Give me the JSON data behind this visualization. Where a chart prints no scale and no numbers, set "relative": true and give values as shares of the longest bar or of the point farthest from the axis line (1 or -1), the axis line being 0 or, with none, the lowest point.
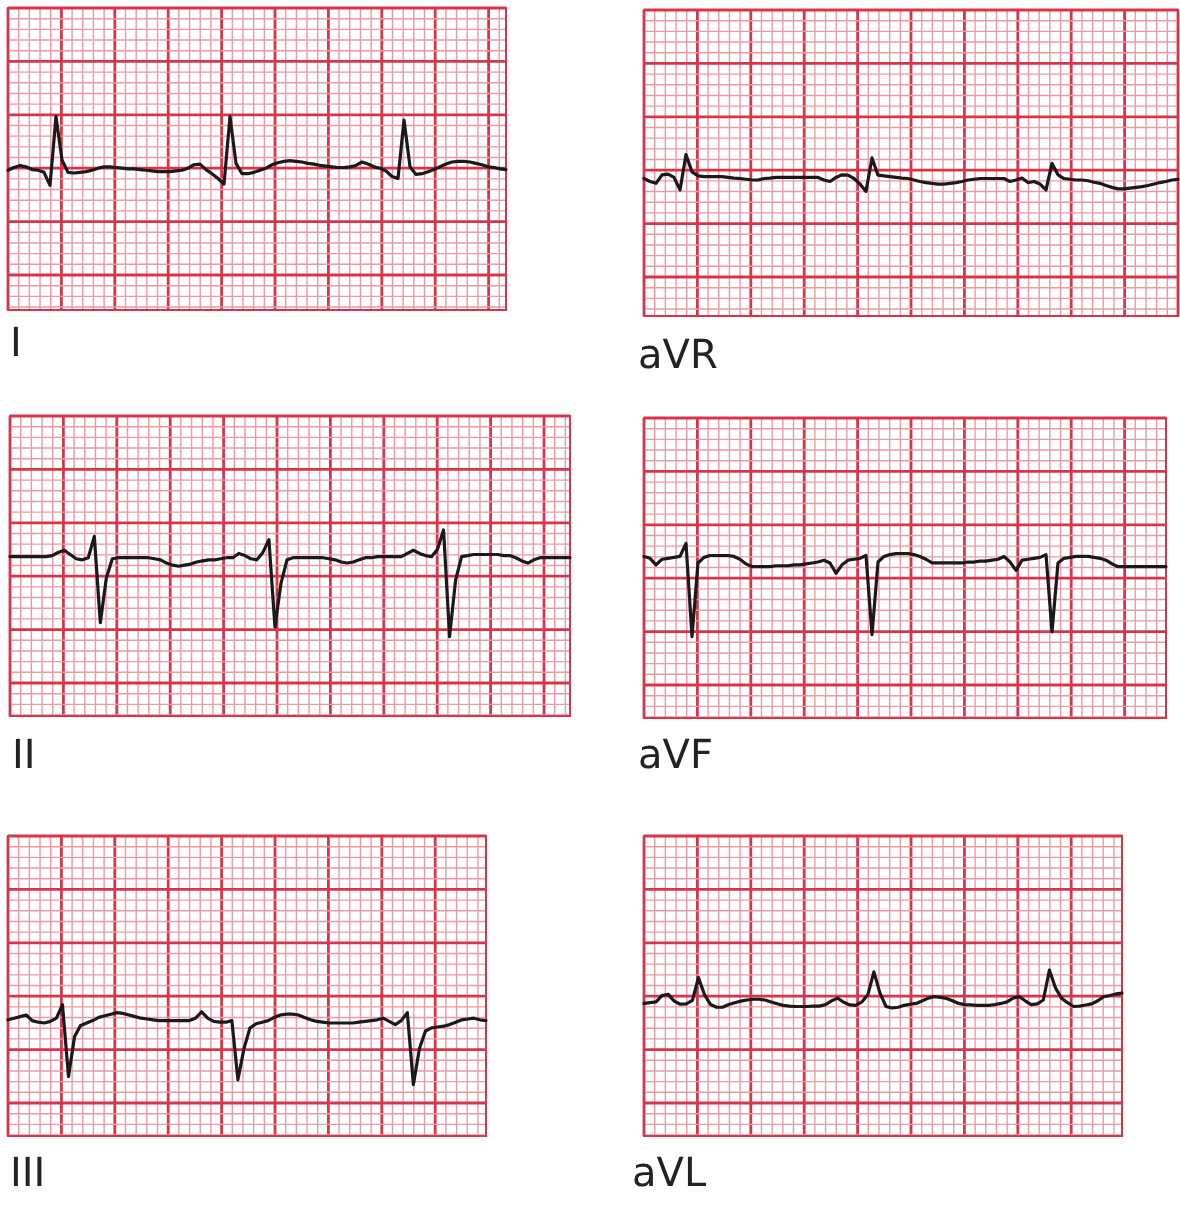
{
  "chart_data": [
    {
      "type": "line",
      "title": "I",
      "relative": true,
      "grid": true,
      "color": "#1a1a1a",
      "categories": [
        null,
        null,
        null,
        null,
        null,
        null,
        null,
        null,
        null,
        null,
        null,
        null,
        null,
        null,
        null,
        null,
        null,
        null,
        null,
        null,
        null,
        null,
        null,
        null,
        null,
        null,
        null,
        null,
        null,
        null,
        null,
        null,
        null,
        null,
        null,
        null,
        null,
        null,
        null,
        null,
        null,
        null,
        null,
        null,
        null,
        null,
        null,
        null,
        null,
        null,
        null,
        null,
        null,
        null,
        null,
        null,
        null,
        null,
        null,
        null,
        null,
        null,
        null,
        null,
        null,
        null,
        null,
        null,
        null,
        null,
        null,
        null,
        null,
        null,
        null,
        null,
        null,
        null,
        null,
        null,
        null,
        null,
        null,
        null
      ],
      "values": [
        0.22,
        0.26,
        0.29,
        0.27,
        0.23,
        0.22,
        0.19,
        0,
        1,
        0.37,
        0.19,
        0.18,
        0.19,
        0.2,
        0.22,
        0.25,
        0.27,
        0.27,
        0.26,
        0.25,
        0.24,
        0.24,
        0.23,
        0.22,
        0.21,
        0.2,
        0.2,
        0.2,
        0.21,
        0.22,
        0.25,
        0.3,
        0.31,
        0.23,
        0.17,
        0.1,
        0.02,
        1,
        0.32,
        0.17,
        0.17,
        0.19,
        0.22,
        0.25,
        0.3,
        0.33,
        0.35,
        0.36,
        0.35,
        0.34,
        0.32,
        0.31,
        0.29,
        0.28,
        0.27,
        0.26,
        0.26,
        0.27,
        0.29,
        0.34,
        0.31,
        0.27,
        0.25,
        0.21,
        0.13,
        0.1,
        0.95,
        0.27,
        0.16,
        0.17,
        0.2,
        0.23,
        0.27,
        0.31,
        0.34,
        0.35,
        0.35,
        0.34,
        0.32,
        0.3,
        0.27,
        0.26,
        0.24,
        0.23
      ]
    },
    {
      "type": "line",
      "title": "aVR",
      "relative": true,
      "grid": true,
      "color": "#1a1a1a",
      "categories": [
        null,
        null,
        null,
        null,
        null,
        null,
        null,
        null,
        null,
        null,
        null,
        null,
        null,
        null,
        null,
        null,
        null,
        null,
        null,
        null,
        null,
        null,
        null,
        null,
        null,
        null,
        null,
        null,
        null,
        null,
        null,
        null,
        null,
        null,
        null,
        null,
        null,
        null,
        null,
        null,
        null,
        null,
        null,
        null,
        null,
        null,
        null,
        null,
        null,
        null,
        null,
        null,
        null,
        null,
        null,
        null,
        null,
        null,
        null,
        null,
        null,
        null,
        null,
        null,
        null,
        null,
        null,
        null,
        null,
        null,
        null,
        null,
        null,
        null,
        null,
        null,
        null,
        null,
        null,
        null,
        null,
        null,
        null,
        null,
        null,
        null,
        null,
        null,
        null,
        null
      ],
      "values": [
        0.35,
        0.27,
        0.22,
        0.45,
        0.47,
        0.38,
        0.04,
        1,
        0.53,
        0.42,
        0.4,
        0.4,
        0.4,
        0.4,
        0.38,
        0.36,
        0.35,
        0.33,
        0.31,
        0.31,
        0.35,
        0.36,
        0.38,
        0.38,
        0.38,
        0.38,
        0.38,
        0.38,
        0.38,
        0.38,
        0.31,
        0.27,
        0.38,
        0.45,
        0.44,
        0.35,
        0.2,
        0,
        0.91,
        0.44,
        0.42,
        0.4,
        0.38,
        0.36,
        0.35,
        0.31,
        0.27,
        0.24,
        0.22,
        0.2,
        0.2,
        0.22,
        0.24,
        0.27,
        0.31,
        0.33,
        0.35,
        0.35,
        0.35,
        0.35,
        0.35,
        0.27,
        0.31,
        0.36,
        0.24,
        0.27,
        0.2,
        0.04,
        0.76,
        0.45,
        0.35,
        0.33,
        0.31,
        0.31,
        0.29,
        0.25,
        0.22,
        0.16,
        0.11,
        0.07,
        0.07,
        0.09,
        0.11,
        0.13,
        0.16,
        0.2,
        0.24,
        0.27,
        0.31,
        0.33
      ]
    },
    {
      "type": "line",
      "title": "II",
      "relative": true,
      "grid": true,
      "color": "#1a1a1a",
      "categories": [
        null,
        null,
        null,
        null,
        null,
        null,
        null,
        null,
        null,
        null,
        null,
        null,
        null,
        null,
        null,
        null,
        null,
        null,
        null,
        null,
        null,
        null,
        null,
        null,
        null,
        null,
        null,
        null,
        null,
        null,
        null,
        null,
        null,
        null,
        null,
        null,
        null,
        null,
        null,
        null,
        null,
        null,
        null,
        null,
        null,
        null,
        null,
        null,
        null,
        null,
        null,
        null,
        null,
        null,
        null,
        null,
        null,
        null,
        null,
        null,
        null,
        null,
        null,
        null,
        null,
        null,
        null,
        null,
        null,
        null,
        null,
        null,
        null,
        null,
        null,
        null,
        null,
        null,
        null,
        null,
        null,
        null,
        null,
        null,
        null,
        null,
        null,
        null,
        null,
        null,
        null,
        null,
        null,
        null
      ],
      "values": [
        0.75,
        0.75,
        0.75,
        0.75,
        0.75,
        0.75,
        0.75,
        0.76,
        0.79,
        0.81,
        0.77,
        0.73,
        0.72,
        0.74,
        0.94,
        0.13,
        0.55,
        0.73,
        0.74,
        0.74,
        0.74,
        0.74,
        0.74,
        0.74,
        0.73,
        0.72,
        0.69,
        0.67,
        0.66,
        0.67,
        0.68,
        0.7,
        0.71,
        0.72,
        0.72,
        0.73,
        0.74,
        0.74,
        0.78,
        0.76,
        0.73,
        0.72,
        0.79,
        0.91,
        0.09,
        0.5,
        0.72,
        0.74,
        0.74,
        0.74,
        0.74,
        0.74,
        0.74,
        0.73,
        0.72,
        0.7,
        0.69,
        0.7,
        0.72,
        0.74,
        0.74,
        0.75,
        0.75,
        0.75,
        0.75,
        0.75,
        0.78,
        0.81,
        0.78,
        0.76,
        0.75,
        0.82,
        1,
        0,
        0.53,
        0.75,
        0.76,
        0.77,
        0.77,
        0.77,
        0.77,
        0.77,
        0.76,
        0.76,
        0.74,
        0.71,
        0.69,
        0.72,
        0.74,
        0.74,
        0.74,
        0.74,
        0.74,
        0.74
      ]
    },
    {
      "type": "line",
      "title": "aVF",
      "relative": true,
      "grid": true,
      "color": "#1a1a1a",
      "categories": [
        null,
        null,
        null,
        null,
        null,
        null,
        null,
        null,
        null,
        null,
        null,
        null,
        null,
        null,
        null,
        null,
        null,
        null,
        null,
        null,
        null,
        null,
        null,
        null,
        null,
        null,
        null,
        null,
        null,
        null,
        null,
        null,
        null,
        null,
        null,
        null,
        null,
        null,
        null,
        null,
        null,
        null,
        null,
        null,
        null,
        null,
        null,
        null,
        null,
        null,
        null,
        null,
        null,
        null,
        null,
        null,
        null,
        null,
        null,
        null,
        null,
        null,
        null,
        null,
        null,
        null,
        null,
        null,
        null,
        null,
        null,
        null,
        null,
        null,
        null,
        null,
        null,
        null,
        null,
        null,
        null,
        null,
        null,
        null,
        null,
        null,
        null,
        null
      ],
      "values": [
        0.86,
        0.84,
        0.77,
        0.83,
        0.84,
        0.85,
        0.86,
        1,
        0,
        0.79,
        0.85,
        0.87,
        0.87,
        0.87,
        0.87,
        0.86,
        0.83,
        0.78,
        0.75,
        0.75,
        0.75,
        0.75,
        0.76,
        0.76,
        0.76,
        0.77,
        0.77,
        0.78,
        0.79,
        0.8,
        0.82,
        0.79,
        0.68,
        0.77,
        0.82,
        0.83,
        0.84,
        0.87,
        0.02,
        0.8,
        0.86,
        0.88,
        0.89,
        0.89,
        0.89,
        0.88,
        0.86,
        0.83,
        0.79,
        0.79,
        0.79,
        0.79,
        0.79,
        0.79,
        0.8,
        0.8,
        0.81,
        0.81,
        0.82,
        0.83,
        0.86,
        0.8,
        0.71,
        0.82,
        0.83,
        0.84,
        0.85,
        0.88,
        0.05,
        0.79,
        0.84,
        0.85,
        0.86,
        0.86,
        0.86,
        0.85,
        0.84,
        0.82,
        0.78,
        0.75,
        0.75,
        0.75,
        0.75,
        0.75,
        0.75,
        0.75,
        0.75,
        0.75
      ]
    },
    {
      "type": "line",
      "title": "III",
      "relative": true,
      "grid": true,
      "color": "#1a1a1a",
      "categories": [
        null,
        null,
        null,
        null,
        null,
        null,
        null,
        null,
        null,
        null,
        null,
        null,
        null,
        null,
        null,
        null,
        null,
        null,
        null,
        null,
        null,
        null,
        null,
        null,
        null,
        null,
        null,
        null,
        null,
        null,
        null,
        null,
        null,
        null,
        null,
        null,
        null,
        null,
        null,
        null,
        null,
        null,
        null,
        null,
        null,
        null,
        null,
        null,
        null,
        null,
        null,
        null,
        null,
        null,
        null,
        null,
        null,
        null,
        null,
        null,
        null,
        null,
        null,
        null,
        null,
        null,
        null,
        null,
        null,
        null,
        null,
        null,
        null,
        null,
        null,
        null,
        null,
        null,
        null,
        null
      ],
      "values": [
        0.81,
        0.83,
        0.85,
        0.87,
        0.8,
        0.78,
        0.77,
        0.79,
        0.83,
        1,
        0.1,
        0.6,
        0.74,
        0.77,
        0.8,
        0.84,
        0.86,
        0.88,
        0.9,
        0.89,
        0.87,
        0.85,
        0.83,
        0.82,
        0.81,
        0.8,
        0.8,
        0.8,
        0.8,
        0.8,
        0.8,
        0.83,
        0.91,
        0.83,
        0.79,
        0.78,
        0.78,
        0.8,
        0.06,
        0.45,
        0.71,
        0.76,
        0.78,
        0.8,
        0.84,
        0.87,
        0.88,
        0.88,
        0.87,
        0.84,
        0.81,
        0.79,
        0.78,
        0.77,
        0.77,
        0.77,
        0.77,
        0.77,
        0.78,
        0.79,
        0.8,
        0.81,
        0.83,
        0.79,
        0.75,
        0.8,
        0.9,
        0,
        0.45,
        0.67,
        0.71,
        0.72,
        0.73,
        0.75,
        0.78,
        0.81,
        0.82,
        0.83,
        0.81,
        0.8
      ]
    },
    {
      "type": "line",
      "title": "aVL",
      "relative": true,
      "grid": true,
      "color": "#1a1a1a",
      "categories": [
        null,
        null,
        null,
        null,
        null,
        null,
        null,
        null,
        null,
        null,
        null,
        null,
        null,
        null,
        null,
        null,
        null,
        null,
        null,
        null,
        null,
        null,
        null,
        null,
        null,
        null,
        null,
        null,
        null,
        null,
        null,
        null,
        null,
        null,
        null,
        null,
        null,
        null,
        null,
        null,
        null,
        null,
        null,
        null,
        null,
        null,
        null,
        null,
        null,
        null,
        null,
        null,
        null,
        null,
        null,
        null,
        null,
        null,
        null,
        null,
        null,
        null,
        null,
        null,
        null,
        null,
        null,
        null,
        null,
        null,
        null,
        null,
        null,
        null,
        null,
        null,
        null,
        null,
        null,
        null
      ],
      "values": [
        0.12,
        0.14,
        0.16,
        0.33,
        0.36,
        0.18,
        0.1,
        0.11,
        0.2,
        0.8,
        0.35,
        0.09,
        0.02,
        0.02,
        0.09,
        0.14,
        0.18,
        0.21,
        0.23,
        0.23,
        0.21,
        0.16,
        0.11,
        0.07,
        0.05,
        0.04,
        0.04,
        0.04,
        0.05,
        0.05,
        0.09,
        0.19,
        0.26,
        0.15,
        0.08,
        0.07,
        0.16,
        0.35,
        0.95,
        0.39,
        0.04,
        0,
        0.02,
        0.07,
        0.1,
        0.12,
        0.19,
        0.26,
        0.3,
        0.28,
        0.25,
        0.19,
        0.12,
        0.09,
        0.08,
        0.07,
        0.07,
        0.07,
        0.09,
        0.12,
        0.16,
        0.26,
        0.3,
        0.19,
        0.09,
        0.11,
        0.21,
        1,
        0.53,
        0.26,
        0.14,
        0.04,
        0.05,
        0.08,
        0.11,
        0.19,
        0.3,
        0.33,
        0.37,
        0.39
      ]
    }
  ]
}
